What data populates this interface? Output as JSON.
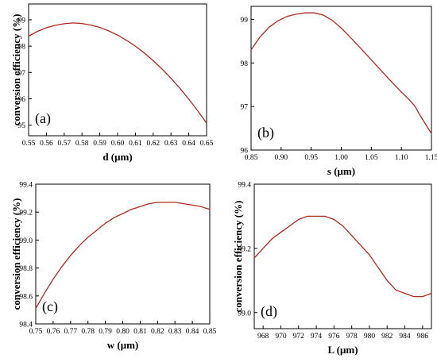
{
  "figure": {
    "curve_color": "#b22a1a"
  },
  "chart_data": [
    {
      "type": "line",
      "panel_label": "(a)",
      "xlabel": "d (μm)",
      "ylabel": "conversion efficiency (%)",
      "xlim": [
        0.55,
        0.65
      ],
      "ylim": [
        94.6,
        99.6
      ],
      "xticks": [
        0.55,
        0.56,
        0.57,
        0.58,
        0.59,
        0.6,
        0.61,
        0.62,
        0.63,
        0.64,
        0.65
      ],
      "xtick_labels": [
        "0.55",
        "0.56",
        "0.57",
        "0.58",
        "0.59",
        "0.60",
        "0.61",
        "0.62",
        "0.63",
        "0.64",
        "0.65"
      ],
      "yticks": [
        95,
        96,
        97,
        98,
        99
      ],
      "ytick_labels": [
        "95",
        "96",
        "97",
        "98",
        "99"
      ],
      "series": [
        {
          "x": [
            0.55,
            0.555,
            0.56,
            0.565,
            0.57,
            0.575,
            0.58,
            0.585,
            0.59,
            0.595,
            0.6,
            0.605,
            0.61,
            0.615,
            0.62,
            0.625,
            0.63,
            0.635,
            0.64,
            0.645,
            0.65
          ],
          "y": [
            98.38,
            98.56,
            98.7,
            98.79,
            98.85,
            98.88,
            98.86,
            98.8,
            98.71,
            98.58,
            98.42,
            98.22,
            98.0,
            97.74,
            97.45,
            97.13,
            96.78,
            96.4,
            95.99,
            95.55,
            95.08
          ]
        }
      ]
    },
    {
      "type": "line",
      "panel_label": "(b)",
      "xlabel": "s (μm)",
      "ylabel": "",
      "xlim": [
        0.85,
        1.15
      ],
      "ylim": [
        96.0,
        99.3
      ],
      "xticks": [
        0.85,
        0.9,
        0.95,
        1.0,
        1.05,
        1.1,
        1.15
      ],
      "xtick_labels": [
        "0.85",
        "0.90",
        "0.95",
        "1.00",
        "1.05",
        "1.10",
        "1.15"
      ],
      "yticks": [
        96,
        97,
        98,
        99
      ],
      "ytick_labels": [
        "96",
        "97",
        "98",
        "99"
      ],
      "series": [
        {
          "x": [
            0.85,
            0.865,
            0.88,
            0.895,
            0.91,
            0.925,
            0.94,
            0.955,
            0.97,
            0.985,
            1.0,
            1.02,
            1.04,
            1.06,
            1.08,
            1.1,
            1.11,
            1.12,
            1.125,
            1.13,
            1.14,
            1.15
          ],
          "y": [
            98.3,
            98.6,
            98.82,
            98.97,
            99.07,
            99.12,
            99.15,
            99.15,
            99.1,
            98.98,
            98.8,
            98.52,
            98.22,
            97.92,
            97.62,
            97.33,
            97.2,
            97.05,
            96.95,
            96.82,
            96.6,
            96.38
          ]
        }
      ]
    },
    {
      "type": "line",
      "panel_label": "(c)",
      "xlabel": "w (μm)",
      "ylabel": "conversion efficiency (%)",
      "xlim": [
        0.75,
        0.85
      ],
      "ylim": [
        98.4,
        99.4
      ],
      "xticks": [
        0.75,
        0.76,
        0.77,
        0.78,
        0.79,
        0.8,
        0.81,
        0.82,
        0.83,
        0.84,
        0.85
      ],
      "xtick_labels": [
        "0.75",
        "0.76",
        "0.77",
        "0.78",
        "0.79",
        "0.80",
        "0.81",
        "0.82",
        "0.83",
        "0.84",
        "0.85"
      ],
      "yticks": [
        98.4,
        98.6,
        98.8,
        99.0,
        99.2,
        99.4
      ],
      "ytick_labels": [
        "98.4",
        "98.6",
        "98.8",
        "99.0",
        "99.2",
        "99.4"
      ],
      "series": [
        {
          "x": [
            0.75,
            0.755,
            0.76,
            0.765,
            0.77,
            0.775,
            0.78,
            0.785,
            0.79,
            0.795,
            0.8,
            0.805,
            0.81,
            0.815,
            0.82,
            0.825,
            0.83,
            0.835,
            0.84,
            0.845,
            0.85
          ],
          "y": [
            98.51,
            98.62,
            98.72,
            98.81,
            98.89,
            98.96,
            99.02,
            99.07,
            99.12,
            99.16,
            99.19,
            99.22,
            99.24,
            99.26,
            99.27,
            99.27,
            99.27,
            99.26,
            99.25,
            99.24,
            99.22
          ]
        }
      ]
    },
    {
      "type": "line",
      "panel_label": "(d)",
      "xlabel": "L (μm)",
      "ylabel": "conversion efficiency (%)",
      "xlim": [
        967,
        987
      ],
      "ylim": [
        98.95,
        99.4
      ],
      "xticks": [
        968,
        970,
        972,
        974,
        976,
        978,
        980,
        982,
        984,
        986
      ],
      "xtick_labels": [
        "968",
        "970",
        "972",
        "974",
        "976",
        "978",
        "980",
        "982",
        "984",
        "986"
      ],
      "yticks": [
        99.0,
        99.2,
        99.4
      ],
      "ytick_labels": [
        "99.0",
        "99.2",
        "99.4"
      ],
      "series": [
        {
          "x": [
            967,
            968,
            969,
            970,
            971,
            972,
            973,
            974,
            975,
            976,
            977,
            978,
            979,
            980,
            981,
            982,
            983,
            984,
            985,
            986,
            987
          ],
          "y": [
            99.17,
            99.2,
            99.23,
            99.25,
            99.27,
            99.29,
            99.3,
            99.3,
            99.3,
            99.29,
            99.27,
            99.24,
            99.21,
            99.18,
            99.14,
            99.1,
            99.07,
            99.06,
            99.05,
            99.05,
            99.06
          ]
        }
      ]
    }
  ]
}
